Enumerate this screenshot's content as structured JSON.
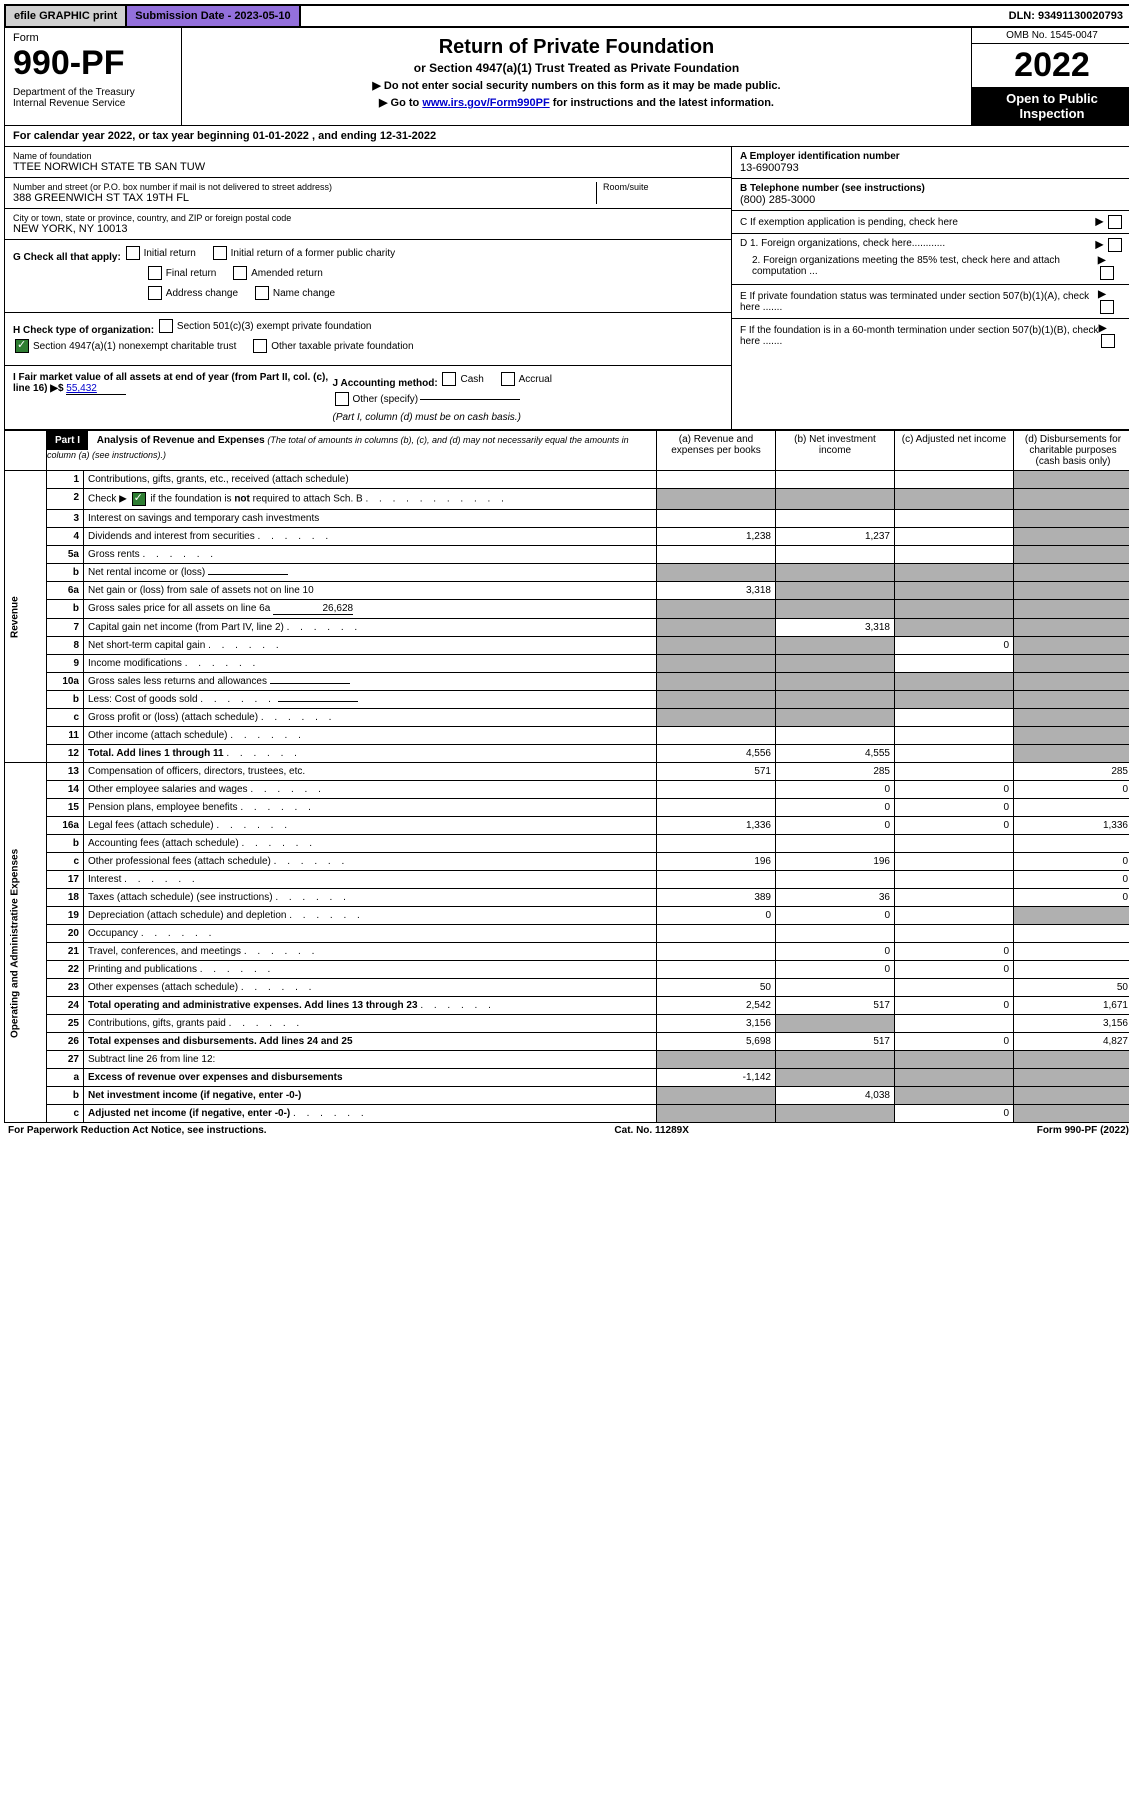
{
  "topbar": {
    "efile": "efile GRAPHIC print",
    "subdate_label": "Submission Date - 2023-05-10",
    "dln": "DLN: 93491130020793"
  },
  "header": {
    "form_word": "Form",
    "form_no": "990-PF",
    "dept": "Department of the Treasury\nInternal Revenue Service",
    "title": "Return of Private Foundation",
    "subtitle": "or Section 4947(a)(1) Trust Treated as Private Foundation",
    "instr1": "▶ Do not enter social security numbers on this form as it may be made public.",
    "instr2_pre": "▶ Go to ",
    "instr2_link": "www.irs.gov/Form990PF",
    "instr2_post": " for instructions and the latest information.",
    "omb": "OMB No. 1545-0047",
    "year": "2022",
    "open": "Open to Public Inspection"
  },
  "calyear": {
    "text_pre": "For calendar year 2022, or tax year beginning ",
    "begin": "01-01-2022",
    "mid": " , and ending ",
    "end": "12-31-2022"
  },
  "entity": {
    "name_label": "Name of foundation",
    "name": "TTEE NORWICH STATE TB SAN TUW",
    "addr_label": "Number and street (or P.O. box number if mail is not delivered to street address)",
    "addr": "388 GREENWICH ST TAX 19TH FL",
    "room_label": "Room/suite",
    "room": "",
    "city_label": "City or town, state or province, country, and ZIP or foreign postal code",
    "city": "NEW YORK, NY  10013",
    "a_label": "A Employer identification number",
    "a_val": "13-6900793",
    "b_label": "B Telephone number (see instructions)",
    "b_val": "(800) 285-3000",
    "c_label": "C If exemption application is pending, check here",
    "d1": "D 1. Foreign organizations, check here............",
    "d2": "2. Foreign organizations meeting the 85% test, check here and attach computation ...",
    "e": "E If private foundation status was terminated under section 507(b)(1)(A), check here .......",
    "f": "F If the foundation is in a 60-month termination under section 507(b)(1)(B), check here ......."
  },
  "sectionG": {
    "g_label": "G Check all that apply:",
    "g_opts": [
      "Initial return",
      "Initial return of a former public charity",
      "Final return",
      "Amended return",
      "Address change",
      "Name change"
    ],
    "h_label": "H Check type of organization:",
    "h1": "Section 501(c)(3) exempt private foundation",
    "h2": "Section 4947(a)(1) nonexempt charitable trust",
    "h3": "Other taxable private foundation",
    "i_label": "I Fair market value of all assets at end of year (from Part II, col. (c), line 16)",
    "i_val": "55,432",
    "j_label": "J Accounting method:",
    "j_opts": [
      "Cash",
      "Accrual",
      "Other (specify)"
    ],
    "j_note": "(Part I, column (d) must be on cash basis.)"
  },
  "part1": {
    "label": "Part I",
    "title": "Analysis of Revenue and Expenses",
    "title_note": "(The total of amounts in columns (b), (c), and (d) may not necessarily equal the amounts in column (a) (see instructions).)",
    "cols": {
      "a": "(a) Revenue and expenses per books",
      "b": "(b) Net investment income",
      "c": "(c) Adjusted net income",
      "d": "(d) Disbursements for charitable purposes (cash basis only)"
    }
  },
  "side": {
    "revenue": "Revenue",
    "expenses": "Operating and Administrative Expenses"
  },
  "rows": [
    {
      "n": "1",
      "desc": "Contributions, gifts, grants, etc., received (attach schedule)",
      "a": "",
      "b": "",
      "c": "",
      "d": "shade"
    },
    {
      "n": "2",
      "desc": "Check ▶ ☑ if the foundation is not required to attach Sch. B",
      "dots": true,
      "a": "shade",
      "b": "shade",
      "c": "shade",
      "d": "shade"
    },
    {
      "n": "3",
      "desc": "Interest on savings and temporary cash investments",
      "a": "",
      "b": "",
      "c": "",
      "d": "shade"
    },
    {
      "n": "4",
      "desc": "Dividends and interest from securities",
      "dots": true,
      "a": "1,238",
      "b": "1,237",
      "c": "",
      "d": "shade"
    },
    {
      "n": "5a",
      "desc": "Gross rents",
      "dots": true,
      "a": "",
      "b": "",
      "c": "",
      "d": "shade"
    },
    {
      "n": "b",
      "desc": "Net rental income or (loss)",
      "inline": "",
      "a": "shade",
      "b": "shade",
      "c": "shade",
      "d": "shade"
    },
    {
      "n": "6a",
      "desc": "Net gain or (loss) from sale of assets not on line 10",
      "a": "3,318",
      "b": "shade",
      "c": "shade",
      "d": "shade"
    },
    {
      "n": "b",
      "desc": "Gross sales price for all assets on line 6a",
      "inline": "26,628",
      "a": "shade",
      "b": "shade",
      "c": "shade",
      "d": "shade"
    },
    {
      "n": "7",
      "desc": "Capital gain net income (from Part IV, line 2)",
      "dots": true,
      "a": "shade",
      "b": "3,318",
      "c": "shade",
      "d": "shade"
    },
    {
      "n": "8",
      "desc": "Net short-term capital gain",
      "dots": true,
      "a": "shade",
      "b": "shade",
      "c": "0",
      "d": "shade"
    },
    {
      "n": "9",
      "desc": "Income modifications",
      "dots": true,
      "a": "shade",
      "b": "shade",
      "c": "",
      "d": "shade"
    },
    {
      "n": "10a",
      "desc": "Gross sales less returns and allowances",
      "inline": "",
      "a": "shade",
      "b": "shade",
      "c": "shade",
      "d": "shade"
    },
    {
      "n": "b",
      "desc": "Less: Cost of goods sold",
      "dots": true,
      "inline": "",
      "a": "shade",
      "b": "shade",
      "c": "shade",
      "d": "shade"
    },
    {
      "n": "c",
      "desc": "Gross profit or (loss) (attach schedule)",
      "dots": true,
      "a": "shade",
      "b": "shade",
      "c": "",
      "d": "shade"
    },
    {
      "n": "11",
      "desc": "Other income (attach schedule)",
      "dots": true,
      "a": "",
      "b": "",
      "c": "",
      "d": "shade"
    },
    {
      "n": "12",
      "desc": "Total. Add lines 1 through 11",
      "dots": true,
      "bold": true,
      "a": "4,556",
      "b": "4,555",
      "c": "",
      "d": "shade"
    },
    {
      "n": "13",
      "desc": "Compensation of officers, directors, trustees, etc.",
      "a": "571",
      "b": "285",
      "c": "",
      "d": "285"
    },
    {
      "n": "14",
      "desc": "Other employee salaries and wages",
      "dots": true,
      "a": "",
      "b": "0",
      "c": "0",
      "d": "0"
    },
    {
      "n": "15",
      "desc": "Pension plans, employee benefits",
      "dots": true,
      "a": "",
      "b": "0",
      "c": "0",
      "d": ""
    },
    {
      "n": "16a",
      "desc": "Legal fees (attach schedule)",
      "dots": true,
      "a": "1,336",
      "b": "0",
      "c": "0",
      "d": "1,336"
    },
    {
      "n": "b",
      "desc": "Accounting fees (attach schedule)",
      "dots": true,
      "a": "",
      "b": "",
      "c": "",
      "d": ""
    },
    {
      "n": "c",
      "desc": "Other professional fees (attach schedule)",
      "dots": true,
      "a": "196",
      "b": "196",
      "c": "",
      "d": "0"
    },
    {
      "n": "17",
      "desc": "Interest",
      "dots": true,
      "a": "",
      "b": "",
      "c": "",
      "d": "0"
    },
    {
      "n": "18",
      "desc": "Taxes (attach schedule) (see instructions)",
      "dots": true,
      "a": "389",
      "b": "36",
      "c": "",
      "d": "0"
    },
    {
      "n": "19",
      "desc": "Depreciation (attach schedule) and depletion",
      "dots": true,
      "a": "0",
      "b": "0",
      "c": "",
      "d": "shade"
    },
    {
      "n": "20",
      "desc": "Occupancy",
      "dots": true,
      "a": "",
      "b": "",
      "c": "",
      "d": ""
    },
    {
      "n": "21",
      "desc": "Travel, conferences, and meetings",
      "dots": true,
      "a": "",
      "b": "0",
      "c": "0",
      "d": ""
    },
    {
      "n": "22",
      "desc": "Printing and publications",
      "dots": true,
      "a": "",
      "b": "0",
      "c": "0",
      "d": ""
    },
    {
      "n": "23",
      "desc": "Other expenses (attach schedule)",
      "dots": true,
      "a": "50",
      "b": "",
      "c": "",
      "d": "50"
    },
    {
      "n": "24",
      "desc": "Total operating and administrative expenses. Add lines 13 through 23",
      "dots": true,
      "bold": true,
      "a": "2,542",
      "b": "517",
      "c": "0",
      "d": "1,671"
    },
    {
      "n": "25",
      "desc": "Contributions, gifts, grants paid",
      "dots": true,
      "a": "3,156",
      "b": "shade",
      "c": "",
      "d": "3,156"
    },
    {
      "n": "26",
      "desc": "Total expenses and disbursements. Add lines 24 and 25",
      "bold": true,
      "a": "5,698",
      "b": "517",
      "c": "0",
      "d": "4,827"
    },
    {
      "n": "27",
      "desc": "Subtract line 26 from line 12:",
      "a": "shade",
      "b": "shade",
      "c": "shade",
      "d": "shade"
    },
    {
      "n": "a",
      "desc": "Excess of revenue over expenses and disbursements",
      "bold": true,
      "a": "-1,142",
      "b": "shade",
      "c": "shade",
      "d": "shade"
    },
    {
      "n": "b",
      "desc": "Net investment income (if negative, enter -0-)",
      "bold": true,
      "a": "shade",
      "b": "4,038",
      "c": "shade",
      "d": "shade"
    },
    {
      "n": "c",
      "desc": "Adjusted net income (if negative, enter -0-)",
      "dots": true,
      "bold": true,
      "a": "shade",
      "b": "shade",
      "c": "0",
      "d": "shade"
    }
  ],
  "footer": {
    "left": "For Paperwork Reduction Act Notice, see instructions.",
    "mid": "Cat. No. 11289X",
    "right": "Form 990-PF (2022)"
  },
  "colors": {
    "shaded": "#b0b0b0",
    "purple": "#9370db",
    "link": "#0000cc"
  }
}
